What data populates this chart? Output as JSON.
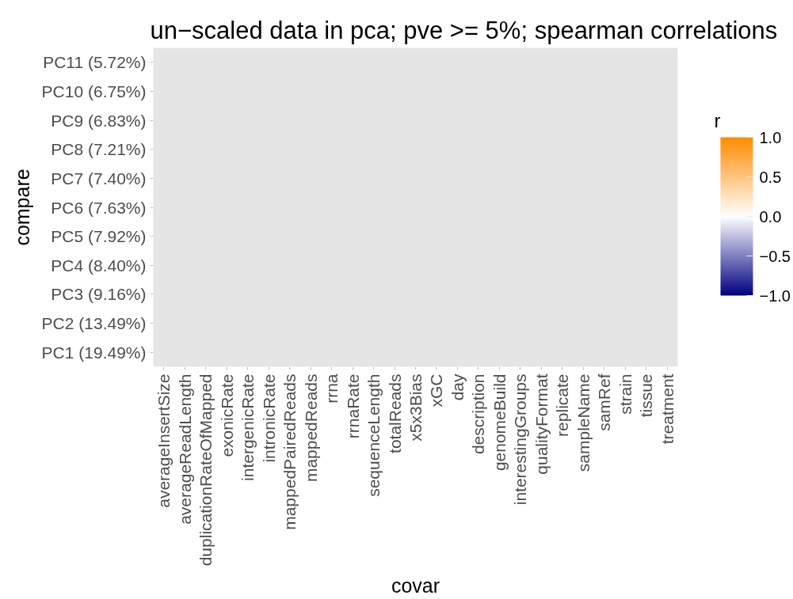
{
  "chart_data": {
    "type": "heatmap",
    "title": "un−scaled  data in pca; pve >= 5%; spearman correlations",
    "xlabel": "covar",
    "ylabel": "compare",
    "clabel": "r",
    "categories": [
      "averageInsertSize",
      "averageReadLength",
      "duplicationRateOfMapped",
      "exonicRate",
      "intergenicRate",
      "intronicRate",
      "mappedPairedReads",
      "mappedReads",
      "rrna",
      "rrnaRate",
      "sequenceLength",
      "totalReads",
      "x5x3Bias",
      "xGC",
      "day",
      "description",
      "genomeBuild",
      "interestingGroups",
      "qualityFormat",
      "replicate",
      "sampleName",
      "samRef",
      "strain",
      "tissue",
      "treatment"
    ],
    "y_categories": [
      "PC11 (5.72%)",
      "PC10 (6.75%)",
      "PC9 (6.83%)",
      "PC8 (7.21%)",
      "PC7 (7.40%)",
      "PC6 (7.63%)",
      "PC5 (7.92%)",
      "PC4 (8.40%)",
      "PC3 (9.16%)",
      "PC2 (13.49%)",
      "PC1 (19.49%)"
    ],
    "cells": [
      [
        null,
        null,
        null,
        null,
        null,
        null,
        null,
        null,
        null,
        null,
        null,
        null,
        null,
        null,
        null,
        null,
        null,
        null,
        null,
        null,
        null,
        null,
        null,
        null,
        null
      ],
      [
        null,
        null,
        null,
        null,
        null,
        null,
        null,
        null,
        null,
        null,
        null,
        null,
        null,
        null,
        null,
        null,
        null,
        null,
        null,
        null,
        null,
        null,
        null,
        null,
        null
      ],
      [
        null,
        null,
        null,
        null,
        null,
        null,
        null,
        null,
        null,
        null,
        null,
        null,
        null,
        null,
        null,
        null,
        null,
        null,
        null,
        null,
        null,
        null,
        null,
        null,
        null
      ],
      [
        null,
        null,
        null,
        null,
        null,
        null,
        null,
        null,
        null,
        null,
        null,
        null,
        null,
        null,
        null,
        null,
        null,
        null,
        null,
        null,
        null,
        null,
        null,
        null,
        null
      ],
      [
        null,
        null,
        null,
        null,
        null,
        null,
        null,
        null,
        null,
        null,
        null,
        null,
        null,
        null,
        null,
        null,
        null,
        null,
        null,
        null,
        null,
        null,
        null,
        null,
        null
      ],
      [
        null,
        null,
        null,
        null,
        null,
        null,
        null,
        null,
        null,
        null,
        null,
        null,
        null,
        null,
        null,
        null,
        null,
        null,
        null,
        null,
        null,
        null,
        null,
        null,
        null
      ],
      [
        null,
        null,
        null,
        null,
        null,
        null,
        null,
        null,
        null,
        null,
        null,
        null,
        null,
        null,
        null,
        null,
        null,
        null,
        null,
        null,
        null,
        null,
        null,
        null,
        null
      ],
      [
        null,
        null,
        null,
        null,
        null,
        null,
        null,
        null,
        null,
        null,
        null,
        null,
        null,
        null,
        null,
        null,
        null,
        null,
        null,
        null,
        null,
        null,
        null,
        null,
        null
      ],
      [
        null,
        null,
        null,
        null,
        null,
        null,
        null,
        null,
        null,
        null,
        null,
        null,
        null,
        null,
        null,
        null,
        null,
        null,
        null,
        null,
        null,
        null,
        null,
        null,
        null
      ],
      [
        null,
        null,
        null,
        null,
        null,
        null,
        null,
        null,
        null,
        null,
        null,
        null,
        null,
        null,
        null,
        null,
        null,
        null,
        null,
        null,
        null,
        null,
        null,
        null,
        null
      ],
      [
        null,
        null,
        null,
        null,
        null,
        null,
        null,
        null,
        null,
        null,
        null,
        null,
        null,
        null,
        null,
        null,
        null,
        null,
        null,
        null,
        null,
        null,
        null,
        null,
        null
      ]
    ],
    "clim": [
      -1,
      1
    ],
    "cticks": [
      {
        "value": -1,
        "label": "−1.0"
      },
      {
        "value": -0.5,
        "label": "−0.5"
      },
      {
        "value": 0,
        "label": "0.0"
      },
      {
        "value": 0.5,
        "label": "0.5"
      },
      {
        "value": 1,
        "label": "1.0"
      }
    ],
    "colors": [
      "#000080",
      "#ffffff",
      "#ff8c00"
    ]
  }
}
